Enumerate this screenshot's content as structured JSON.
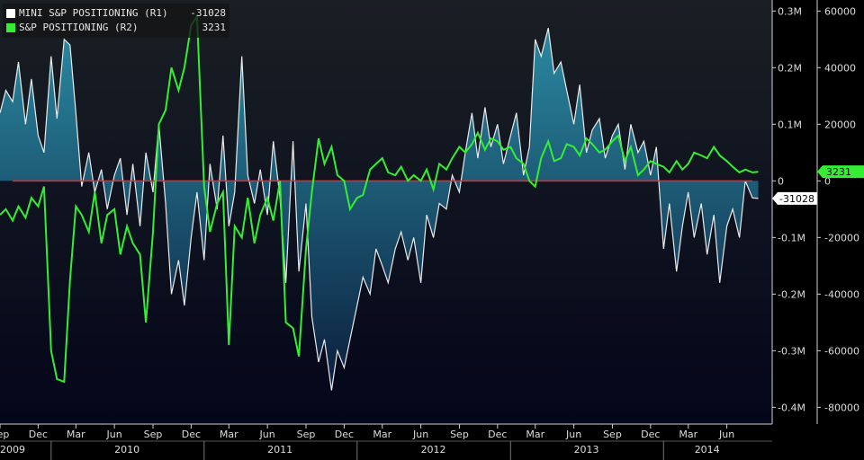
{
  "legend": {
    "items": [
      {
        "label": "MINI S&P POSITIONING (R1)",
        "value": "-31028",
        "color": "#ffffff"
      },
      {
        "label": "S&P POSITIONING (R2)",
        "value": "3231",
        "color": "#33ee33"
      }
    ]
  },
  "colors": {
    "background_top": "#1a1f24",
    "background_bottom": "#04061a",
    "area_top": "#2c8fa8",
    "area_bottom": "#0b1f3e",
    "mini_line": "#eaeaea",
    "sp_line": "#33ee33",
    "zero_line": "#ff2020",
    "axis": "#cfcfcf"
  },
  "chart_data": {
    "type": "line",
    "x_range": [
      "2009-09",
      "2014-08"
    ],
    "month_tick_labels": [
      "Sep",
      "Dec",
      "Mar",
      "Jun",
      "Sep",
      "Dec",
      "Mar",
      "Jun",
      "Sep",
      "Dec",
      "Mar",
      "Jun",
      "Sep",
      "Dec",
      "Mar",
      "Jun",
      "Sep",
      "Dec",
      "Mar",
      "Jun"
    ],
    "month_ticks": [
      "2009-09",
      "2009-12",
      "2010-03",
      "2010-06",
      "2010-09",
      "2010-12",
      "2011-03",
      "2011-06",
      "2011-09",
      "2011-12",
      "2012-03",
      "2012-06",
      "2012-09",
      "2012-12",
      "2013-03",
      "2013-06",
      "2013-09",
      "2013-12",
      "2014-03",
      "2014-06"
    ],
    "year_labels": [
      "2009",
      "2010",
      "2011",
      "2012",
      "2013",
      "2014"
    ],
    "year_label_dates": [
      "2009-10-01",
      "2010-07-01",
      "2011-07-01",
      "2012-07-01",
      "2013-07-01",
      "2014-04-15"
    ],
    "year_boundaries": [
      "2010-01-01",
      "2011-01-01",
      "2012-01-01",
      "2013-01-01",
      "2014-01-01"
    ],
    "axis_r1": {
      "ylim": [
        -0.42,
        0.31
      ],
      "ticks": [
        0.3,
        0.2,
        0.1,
        0,
        -0.1,
        -0.2,
        -0.3,
        -0.4
      ],
      "tick_labels": [
        "0.3M",
        "0.2M",
        "0.1M",
        "0",
        "-0.1M",
        "-0.2M",
        "-0.3M",
        "-0.4M"
      ],
      "last_value_label": "-31028",
      "last_value": -0.031
    },
    "axis_r2": {
      "ylim": [
        -84000,
        62000
      ],
      "ticks": [
        60000,
        40000,
        20000,
        0,
        -20000,
        -40000,
        -60000,
        -80000
      ],
      "tick_labels": [
        "60000",
        "40000",
        "20000",
        "0",
        "-20000",
        "-40000",
        "-60000",
        "-80000"
      ],
      "last_value_label": "3231",
      "last_value": 3231
    },
    "series": [
      {
        "name": "MINI S&P POSITIONING (R1)",
        "axis": "r1",
        "style": "area",
        "dates": [
          "2009-09-01",
          "2009-09-15",
          "2009-10-01",
          "2009-10-15",
          "2009-11-01",
          "2009-11-15",
          "2009-12-01",
          "2009-12-15",
          "2010-01-01",
          "2010-01-15",
          "2010-02-01",
          "2010-02-15",
          "2010-03-01",
          "2010-03-15",
          "2010-04-01",
          "2010-04-15",
          "2010-05-01",
          "2010-05-15",
          "2010-06-01",
          "2010-06-15",
          "2010-07-01",
          "2010-07-15",
          "2010-08-01",
          "2010-08-15",
          "2010-09-01",
          "2010-09-15",
          "2010-10-01",
          "2010-10-15",
          "2010-11-01",
          "2010-11-15",
          "2010-12-01",
          "2010-12-15",
          "2011-01-01",
          "2011-01-15",
          "2011-02-01",
          "2011-02-15",
          "2011-03-01",
          "2011-03-15",
          "2011-04-01",
          "2011-04-15",
          "2011-05-01",
          "2011-05-15",
          "2011-06-01",
          "2011-06-15",
          "2011-07-01",
          "2011-07-15",
          "2011-08-01",
          "2011-08-15",
          "2011-09-01",
          "2011-09-15",
          "2011-10-01",
          "2011-10-15",
          "2011-11-01",
          "2011-11-15",
          "2011-12-01",
          "2011-12-15",
          "2012-01-01",
          "2012-01-15",
          "2012-02-01",
          "2012-02-15",
          "2012-03-01",
          "2012-03-15",
          "2012-04-01",
          "2012-04-15",
          "2012-05-01",
          "2012-05-15",
          "2012-06-01",
          "2012-06-15",
          "2012-07-01",
          "2012-07-15",
          "2012-08-01",
          "2012-08-15",
          "2012-09-01",
          "2012-09-15",
          "2012-10-01",
          "2012-10-15",
          "2012-11-01",
          "2012-11-15",
          "2012-12-01",
          "2012-12-15",
          "2013-01-01",
          "2013-01-15",
          "2013-02-01",
          "2013-02-15",
          "2013-03-01",
          "2013-03-15",
          "2013-04-01",
          "2013-04-15",
          "2013-05-01",
          "2013-05-15",
          "2013-06-01",
          "2013-06-15",
          "2013-07-01",
          "2013-07-15",
          "2013-08-01",
          "2013-08-15",
          "2013-09-01",
          "2013-09-15",
          "2013-10-01",
          "2013-10-15",
          "2013-11-01",
          "2013-11-15",
          "2013-12-01",
          "2013-12-15",
          "2014-01-01",
          "2014-01-15",
          "2014-02-01",
          "2014-02-15",
          "2014-03-01",
          "2014-03-15",
          "2014-04-01",
          "2014-04-15",
          "2014-05-01",
          "2014-05-15",
          "2014-06-01",
          "2014-06-15",
          "2014-07-01",
          "2014-07-15",
          "2014-08-01",
          "2014-08-15"
        ],
        "values": [
          0.12,
          0.16,
          0.14,
          0.21,
          0.1,
          0.18,
          0.08,
          0.05,
          0.22,
          0.11,
          0.25,
          0.24,
          0.12,
          -0.01,
          0.05,
          -0.02,
          0.02,
          -0.05,
          0.01,
          0.04,
          -0.06,
          0.03,
          -0.08,
          0.05,
          -0.02,
          0.1,
          -0.04,
          -0.2,
          -0.14,
          -0.22,
          -0.1,
          -0.02,
          -0.14,
          0.03,
          -0.05,
          0.08,
          -0.08,
          -0.02,
          0.22,
          0.01,
          -0.04,
          0.02,
          -0.06,
          0.07,
          -0.03,
          -0.18,
          0.07,
          -0.16,
          -0.04,
          -0.24,
          -0.32,
          -0.28,
          -0.37,
          -0.3,
          -0.33,
          -0.28,
          -0.22,
          -0.17,
          -0.2,
          -0.12,
          -0.15,
          -0.18,
          -0.12,
          -0.09,
          -0.14,
          -0.1,
          -0.18,
          -0.06,
          -0.1,
          -0.04,
          -0.05,
          0.01,
          -0.02,
          0.05,
          0.12,
          0.04,
          0.13,
          0.06,
          0.1,
          0.03,
          0.08,
          0.12,
          0.01,
          0.06,
          0.25,
          0.22,
          0.27,
          0.19,
          0.21,
          0.16,
          0.1,
          0.17,
          0.05,
          0.09,
          0.11,
          0.04,
          0.08,
          0.1,
          0.02,
          0.1,
          0.05,
          0.07,
          0.01,
          0.06,
          -0.12,
          -0.04,
          -0.16,
          -0.08,
          -0.02,
          -0.1,
          -0.04,
          -0.13,
          -0.06,
          -0.18,
          -0.08,
          -0.05,
          -0.1,
          0.0,
          -0.03,
          -0.031
        ]
      },
      {
        "name": "S&P POSITIONING (R2)",
        "axis": "r2",
        "style": "line",
        "dates": [
          "2009-09-01",
          "2009-09-15",
          "2009-10-01",
          "2009-10-15",
          "2009-11-01",
          "2009-11-15",
          "2009-12-01",
          "2009-12-15",
          "2010-01-01",
          "2010-01-15",
          "2010-02-01",
          "2010-02-15",
          "2010-03-01",
          "2010-03-15",
          "2010-04-01",
          "2010-04-15",
          "2010-05-01",
          "2010-05-15",
          "2010-06-01",
          "2010-06-15",
          "2010-07-01",
          "2010-07-15",
          "2010-08-01",
          "2010-08-15",
          "2010-09-01",
          "2010-09-15",
          "2010-10-01",
          "2010-10-15",
          "2010-11-01",
          "2010-11-15",
          "2010-12-01",
          "2010-12-15",
          "2011-01-01",
          "2011-01-15",
          "2011-02-01",
          "2011-02-15",
          "2011-03-01",
          "2011-03-15",
          "2011-04-01",
          "2011-04-15",
          "2011-05-01",
          "2011-05-15",
          "2011-06-01",
          "2011-06-15",
          "2011-07-01",
          "2011-07-15",
          "2011-08-01",
          "2011-08-15",
          "2011-09-01",
          "2011-09-15",
          "2011-10-01",
          "2011-10-15",
          "2011-11-01",
          "2011-11-15",
          "2011-12-01",
          "2011-12-15",
          "2012-01-01",
          "2012-01-15",
          "2012-02-01",
          "2012-02-15",
          "2012-03-01",
          "2012-03-15",
          "2012-04-01",
          "2012-04-15",
          "2012-05-01",
          "2012-05-15",
          "2012-06-01",
          "2012-06-15",
          "2012-07-01",
          "2012-07-15",
          "2012-08-01",
          "2012-08-15",
          "2012-09-01",
          "2012-09-15",
          "2012-10-01",
          "2012-10-15",
          "2012-11-01",
          "2012-11-15",
          "2012-12-01",
          "2012-12-15",
          "2013-01-01",
          "2013-01-15",
          "2013-02-01",
          "2013-02-15",
          "2013-03-01",
          "2013-03-15",
          "2013-04-01",
          "2013-04-15",
          "2013-05-01",
          "2013-05-15",
          "2013-06-01",
          "2013-06-15",
          "2013-07-01",
          "2013-07-15",
          "2013-08-01",
          "2013-08-15",
          "2013-09-01",
          "2013-09-15",
          "2013-10-01",
          "2013-10-15",
          "2013-11-01",
          "2013-11-15",
          "2013-12-01",
          "2013-12-15",
          "2014-01-01",
          "2014-01-15",
          "2014-02-01",
          "2014-02-15",
          "2014-03-01",
          "2014-03-15",
          "2014-04-01",
          "2014-04-15",
          "2014-05-01",
          "2014-05-15",
          "2014-06-01",
          "2014-06-15",
          "2014-07-01",
          "2014-07-15",
          "2014-08-01",
          "2014-08-15"
        ],
        "values": [
          -12000,
          -10000,
          -14000,
          -9000,
          -13000,
          -6000,
          -9000,
          -2000,
          -60000,
          -70000,
          -71000,
          -35000,
          -9000,
          -12000,
          -18000,
          -4000,
          -22000,
          -12000,
          -10000,
          -26000,
          -16000,
          -22000,
          -26000,
          -50000,
          -18000,
          20000,
          25000,
          40000,
          32000,
          40000,
          55000,
          58000,
          -2000,
          -18000,
          -8000,
          -4000,
          -58000,
          -16000,
          -20000,
          -6000,
          -22000,
          -12000,
          -6000,
          -14000,
          0,
          -50000,
          -52000,
          -62000,
          -24000,
          -4000,
          15000,
          6000,
          12000,
          2000,
          0,
          -10000,
          -6000,
          -5000,
          4000,
          6000,
          8000,
          3000,
          2000,
          5000,
          0,
          2000,
          0,
          4000,
          -3000,
          6000,
          4000,
          8000,
          12000,
          10000,
          13000,
          17000,
          11000,
          15000,
          14000,
          11000,
          12000,
          8000,
          6000,
          0,
          -2000,
          8000,
          14000,
          7000,
          8000,
          13000,
          12000,
          9000,
          15000,
          13000,
          10000,
          11000,
          14000,
          16000,
          7000,
          12000,
          2000,
          4000,
          7000,
          6000,
          5000,
          3000,
          7000,
          4000,
          6000,
          10000,
          9000,
          8000,
          12000,
          9000,
          7000,
          5000,
          3000,
          4000,
          3000,
          3231
        ]
      }
    ]
  }
}
